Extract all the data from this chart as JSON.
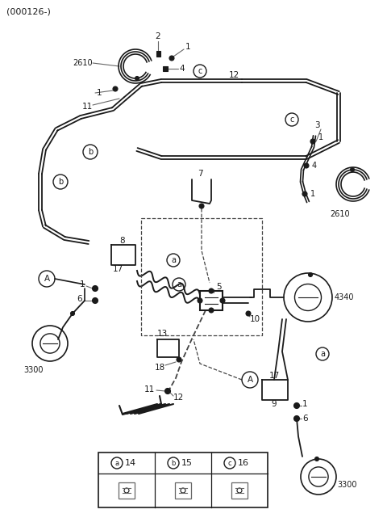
{
  "bg_color": "#ffffff",
  "line_color": "#1a1a1a",
  "gray_color": "#666666",
  "dashed_color": "#444444",
  "figsize": [
    4.8,
    6.46
  ],
  "dpi": 100,
  "title": "(000126-)",
  "legend": [
    {
      "sym": "a",
      "num": "14"
    },
    {
      "sym": "b",
      "num": "15"
    },
    {
      "sym": "c",
      "num": "16"
    }
  ]
}
